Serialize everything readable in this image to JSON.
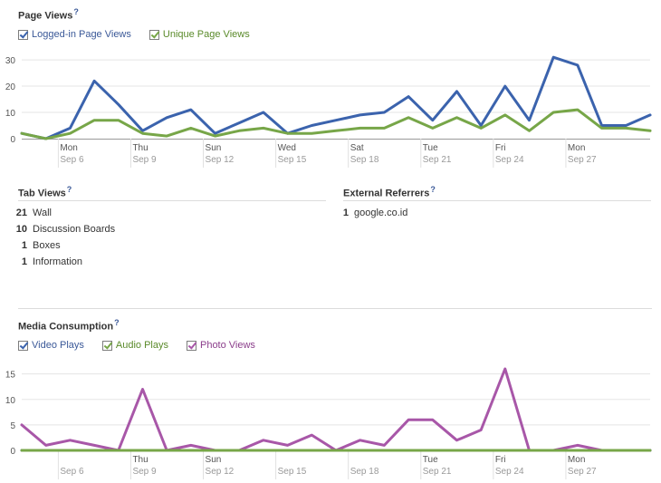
{
  "page_views": {
    "title": "Page Views",
    "help": "?",
    "legend": [
      {
        "label": "Logged-in Page Views",
        "color": "#3b63ad"
      },
      {
        "label": "Unique Page Views",
        "color": "#77a648"
      }
    ]
  },
  "tab_views": {
    "title": "Tab Views",
    "help": "?",
    "items": [
      {
        "count": "21",
        "label": "Wall"
      },
      {
        "count": "10",
        "label": "Discussion Boards"
      },
      {
        "count": "1",
        "label": "Boxes"
      },
      {
        "count": "1",
        "label": "Information"
      }
    ]
  },
  "external_referrers": {
    "title": "External Referrers",
    "help": "?",
    "items": [
      {
        "count": "1",
        "label": "google.co.id"
      }
    ]
  },
  "media": {
    "title": "Media Consumption",
    "help": "?",
    "legend": [
      {
        "label": "Video Plays",
        "color": "#3b63ad",
        "text_color": "#3b5998"
      },
      {
        "label": "Audio Plays",
        "color": "#77a648",
        "text_color": "#5a8a2a"
      },
      {
        "label": "Photo Views",
        "color": "#a857a8",
        "text_color": "#8b3e8b"
      }
    ]
  },
  "chart_data": [
    {
      "type": "line",
      "x_labels": [
        {
          "day": "Mon",
          "date": "Sep 6"
        },
        {
          "day": "Thu",
          "date": "Sep 9"
        },
        {
          "day": "Sun",
          "date": "Sep 12"
        },
        {
          "day": "Wed",
          "date": "Sep 15"
        },
        {
          "day": "Sat",
          "date": "Sep 18"
        },
        {
          "day": "Tue",
          "date": "Sep 21"
        },
        {
          "day": "Fri",
          "date": "Sep 24"
        },
        {
          "day": "Mon",
          "date": "Sep 27"
        }
      ],
      "x": [
        "Sep 4",
        "Sep 5",
        "Sep 6",
        "Sep 7",
        "Sep 8",
        "Sep 9",
        "Sep 10",
        "Sep 11",
        "Sep 12",
        "Sep 13",
        "Sep 14",
        "Sep 15",
        "Sep 16",
        "Sep 17",
        "Sep 18",
        "Sep 19",
        "Sep 20",
        "Sep 21",
        "Sep 22",
        "Sep 23",
        "Sep 24",
        "Sep 25",
        "Sep 26",
        "Sep 27",
        "Sep 28",
        "Sep 29",
        "Sep 30"
      ],
      "y_ticks": [
        0,
        10,
        20,
        30
      ],
      "ylim": [
        0,
        33
      ],
      "series": [
        {
          "name": "Logged-in Page Views",
          "color": "#3b63ad",
          "values": [
            2,
            0,
            4,
            22,
            13,
            3,
            8,
            11,
            2,
            6,
            10,
            2,
            5,
            7,
            9,
            10,
            16,
            7,
            18,
            5,
            20,
            7,
            31,
            28,
            5,
            5,
            9
          ]
        },
        {
          "name": "Unique Page Views",
          "color": "#77a648",
          "values": [
            2,
            0,
            2,
            7,
            7,
            2,
            1,
            4,
            1,
            3,
            4,
            2,
            2,
            3,
            4,
            4,
            8,
            4,
            8,
            4,
            9,
            3,
            10,
            11,
            4,
            4,
            3
          ]
        }
      ]
    },
    {
      "type": "line",
      "x_labels": [
        {
          "day": "",
          "date": "Sep 6"
        },
        {
          "day": "Thu",
          "date": "Sep 9"
        },
        {
          "day": "Sun",
          "date": "Sep 12"
        },
        {
          "day": "",
          "date": "Sep 15"
        },
        {
          "day": "",
          "date": "Sep 18"
        },
        {
          "day": "Tue",
          "date": "Sep 21"
        },
        {
          "day": "Fri",
          "date": "Sep 24"
        },
        {
          "day": "Mon",
          "date": "Sep 27"
        }
      ],
      "x": [
        "Sep 4",
        "Sep 5",
        "Sep 6",
        "Sep 7",
        "Sep 8",
        "Sep 9",
        "Sep 10",
        "Sep 11",
        "Sep 12",
        "Sep 13",
        "Sep 14",
        "Sep 15",
        "Sep 16",
        "Sep 17",
        "Sep 18",
        "Sep 19",
        "Sep 20",
        "Sep 21",
        "Sep 22",
        "Sep 23",
        "Sep 24",
        "Sep 25",
        "Sep 26",
        "Sep 27",
        "Sep 28",
        "Sep 29",
        "Sep 30"
      ],
      "y_ticks": [
        0,
        5,
        10,
        15
      ],
      "ylim": [
        0,
        16.5
      ],
      "series": [
        {
          "name": "Video Plays",
          "color": "#3b63ad",
          "values": [
            0,
            0,
            0,
            0,
            0,
            0,
            0,
            0,
            0,
            0,
            0,
            0,
            0,
            0,
            0,
            0,
            0,
            0,
            0,
            0,
            0,
            0,
            0,
            0,
            0,
            0,
            0
          ]
        },
        {
          "name": "Audio Plays",
          "color": "#77a648",
          "values": [
            0,
            0,
            0,
            0,
            0,
            0,
            0,
            0,
            0,
            0,
            0,
            0,
            0,
            0,
            0,
            0,
            0,
            0,
            0,
            0,
            0,
            0,
            0,
            0,
            0,
            0,
            0
          ]
        },
        {
          "name": "Photo Views",
          "color": "#a857a8",
          "values": [
            5,
            1,
            2,
            1,
            0,
            12,
            0,
            1,
            0,
            0,
            2,
            1,
            3,
            0,
            2,
            1,
            6,
            6,
            2,
            4,
            16,
            0,
            0,
            1,
            0,
            0,
            0
          ]
        }
      ]
    }
  ]
}
